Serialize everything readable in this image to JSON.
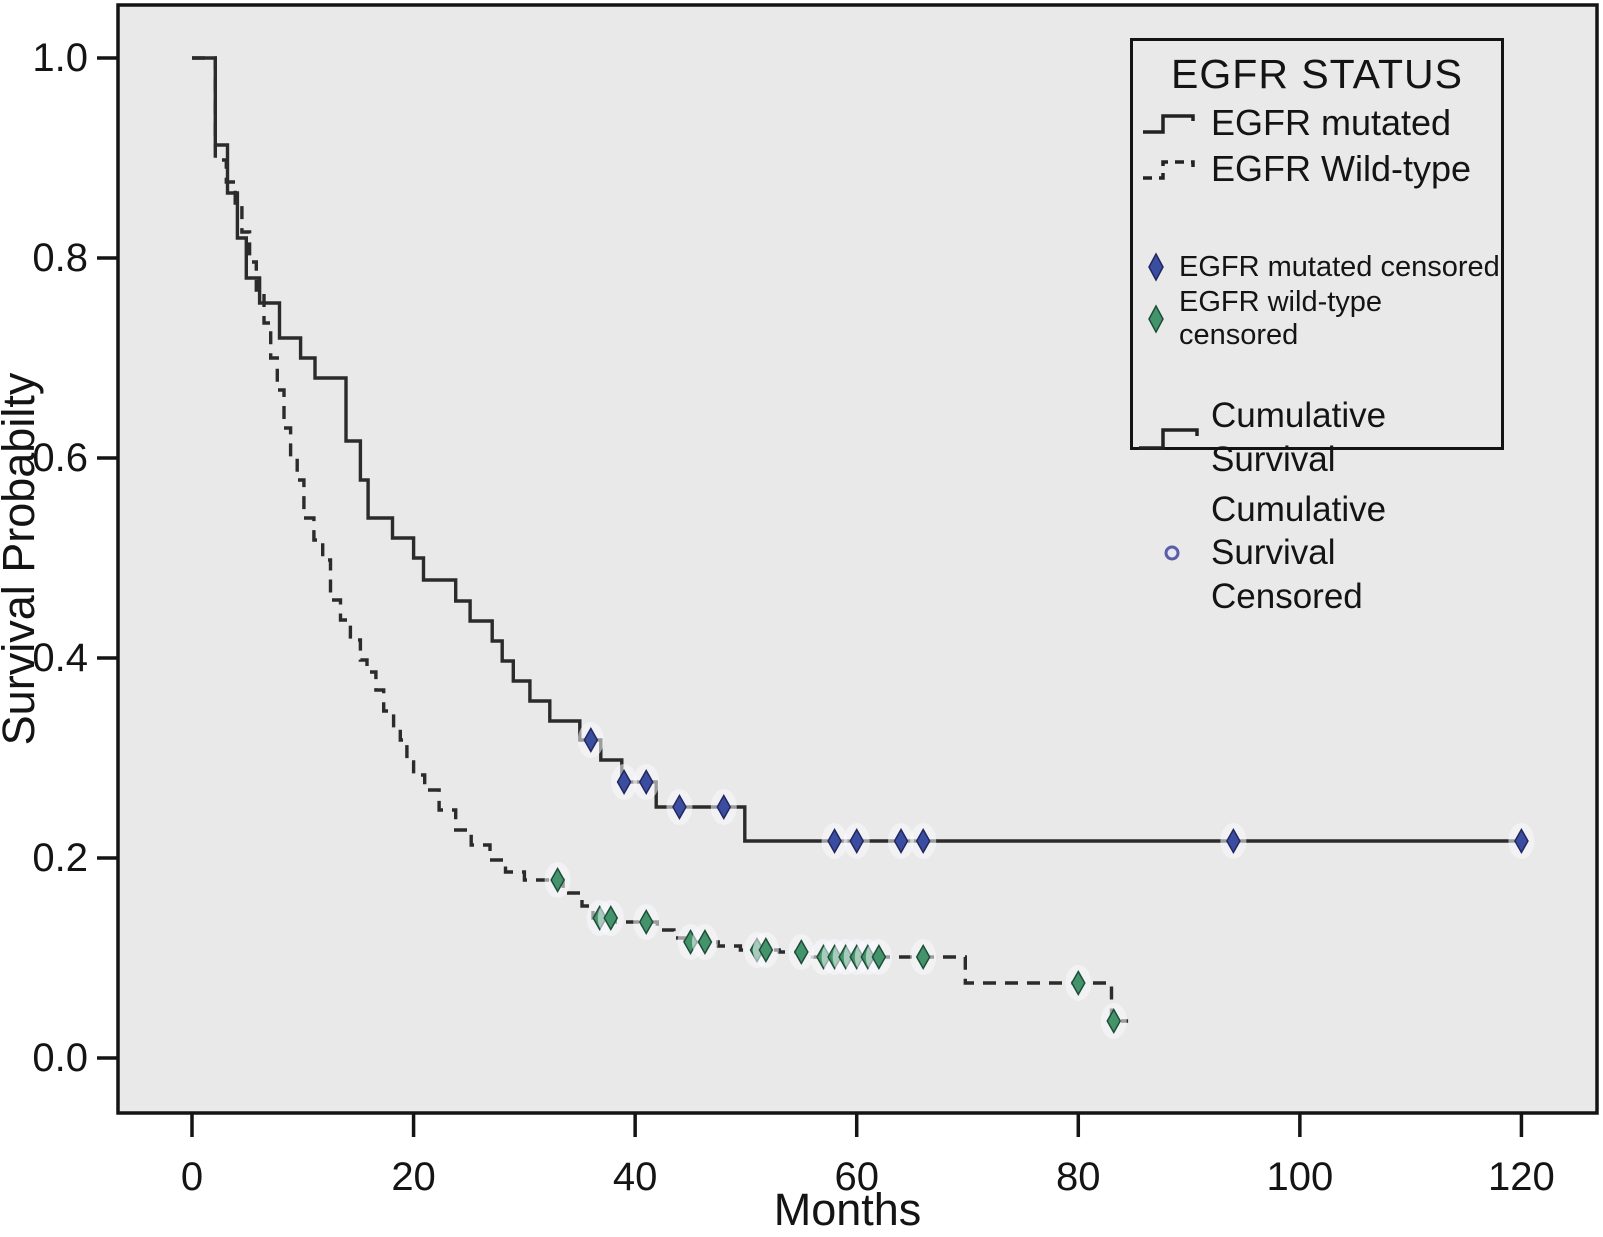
{
  "chart_data": {
    "type": "line",
    "subtype": "kaplan-meier-step",
    "title": "",
    "xlabel": "Months",
    "ylabel": "Survival Probabilty",
    "xlim": [
      -6.7,
      126.8
    ],
    "ylim": [
      -0.055,
      1.053
    ],
    "grid": false,
    "legend_position": "top-right",
    "x_axis": {
      "label": "Months",
      "ticks": [
        {
          "v": 0,
          "label": "0"
        },
        {
          "v": 20,
          "label": "20"
        },
        {
          "v": 40,
          "label": "40"
        },
        {
          "v": 60,
          "label": "60"
        },
        {
          "v": 80,
          "label": "80"
        },
        {
          "v": 100,
          "label": "100"
        },
        {
          "v": 120,
          "label": "120"
        }
      ]
    },
    "y_axis": {
      "label": "Survival Probabilty",
      "ticks": [
        {
          "v": 1.0,
          "label": "1.0"
        },
        {
          "v": 0.8,
          "label": "0.8"
        },
        {
          "v": 0.6,
          "label": "0.6"
        },
        {
          "v": 0.4,
          "label": "0.4"
        },
        {
          "v": 0.2,
          "label": "0.2"
        },
        {
          "v": 0.0,
          "label": "0.0"
        }
      ]
    },
    "series": [
      {
        "name": "EGFR mutated",
        "line_style": "solid",
        "line_color": "#2b2b2b",
        "censor_marker": "diamond",
        "censor_color": "#3b4da0",
        "censor_edge": "#20285e",
        "steps": [
          [
            0,
            1.0
          ],
          [
            2.1,
            0.913
          ],
          [
            3.2,
            0.865
          ],
          [
            4.1,
            0.82
          ],
          [
            4.9,
            0.78
          ],
          [
            6.1,
            0.755
          ],
          [
            7.9,
            0.72
          ],
          [
            9.8,
            0.7
          ],
          [
            11.1,
            0.68
          ],
          [
            13.9,
            0.617
          ],
          [
            15.2,
            0.578
          ],
          [
            15.9,
            0.54
          ],
          [
            18.1,
            0.52
          ],
          [
            20.0,
            0.5
          ],
          [
            20.9,
            0.478
          ],
          [
            23.8,
            0.457
          ],
          [
            25.1,
            0.437
          ],
          [
            27.1,
            0.417
          ],
          [
            28.0,
            0.397
          ],
          [
            29.0,
            0.377
          ],
          [
            30.5,
            0.357
          ],
          [
            32.3,
            0.337
          ],
          [
            35.0,
            0.318
          ],
          [
            36.9,
            0.298
          ],
          [
            38.8,
            0.276
          ],
          [
            41.9,
            0.251
          ],
          [
            49.9,
            0.217
          ],
          [
            120,
            0.217
          ]
        ],
        "censored": [
          [
            36,
            0.318
          ],
          [
            39,
            0.276
          ],
          [
            41,
            0.276
          ],
          [
            44,
            0.251
          ],
          [
            48,
            0.251
          ],
          [
            58,
            0.217
          ],
          [
            60,
            0.217
          ],
          [
            64,
            0.217
          ],
          [
            66,
            0.217
          ],
          [
            94,
            0.217
          ],
          [
            120,
            0.217
          ]
        ]
      },
      {
        "name": "EGFR Wild-type",
        "line_style": "dashed",
        "line_color": "#2b2b2b",
        "censor_marker": "diamond",
        "censor_color": "#43946a",
        "censor_edge": "#1e4d38",
        "steps": [
          [
            0,
            1.0
          ],
          [
            2.1,
            0.898
          ],
          [
            3.1,
            0.876
          ],
          [
            3.9,
            0.855
          ],
          [
            4.5,
            0.826
          ],
          [
            5.2,
            0.796
          ],
          [
            5.8,
            0.768
          ],
          [
            6.5,
            0.735
          ],
          [
            7.1,
            0.7
          ],
          [
            7.7,
            0.668
          ],
          [
            8.3,
            0.63
          ],
          [
            8.9,
            0.6
          ],
          [
            9.5,
            0.578
          ],
          [
            10.1,
            0.54
          ],
          [
            11.0,
            0.518
          ],
          [
            11.8,
            0.498
          ],
          [
            12.5,
            0.458
          ],
          [
            13.4,
            0.438
          ],
          [
            14.3,
            0.418
          ],
          [
            15.2,
            0.398
          ],
          [
            15.8,
            0.386
          ],
          [
            16.6,
            0.368
          ],
          [
            17.3,
            0.347
          ],
          [
            18.2,
            0.33
          ],
          [
            18.8,
            0.318
          ],
          [
            19.4,
            0.296
          ],
          [
            20.0,
            0.283
          ],
          [
            21.0,
            0.268
          ],
          [
            22.3,
            0.248
          ],
          [
            23.8,
            0.228
          ],
          [
            25.2,
            0.213
          ],
          [
            26.9,
            0.198
          ],
          [
            28.3,
            0.186
          ],
          [
            30.0,
            0.178
          ],
          [
            33.5,
            0.165
          ],
          [
            35.2,
            0.152
          ],
          [
            36.2,
            0.14
          ],
          [
            38.0,
            0.136
          ],
          [
            42.0,
            0.128
          ],
          [
            43.5,
            0.12
          ],
          [
            44.5,
            0.116
          ],
          [
            47.5,
            0.112
          ],
          [
            49.5,
            0.108
          ],
          [
            53.0,
            0.106
          ],
          [
            56.0,
            0.101
          ],
          [
            69.8,
            0.075
          ],
          [
            83.0,
            0.037
          ],
          [
            84.5,
            0.037
          ]
        ],
        "censored": [
          [
            33,
            0.178
          ],
          [
            36.8,
            0.14
          ],
          [
            37.8,
            0.14
          ],
          [
            41,
            0.136
          ],
          [
            45,
            0.116
          ],
          [
            46.3,
            0.116
          ],
          [
            51,
            0.108
          ],
          [
            51.8,
            0.108
          ],
          [
            55,
            0.106
          ],
          [
            57,
            0.101
          ],
          [
            58,
            0.101
          ],
          [
            59,
            0.101
          ],
          [
            60,
            0.101
          ],
          [
            61,
            0.101
          ],
          [
            62,
            0.101
          ],
          [
            66,
            0.101
          ],
          [
            80,
            0.075
          ],
          [
            83.2,
            0.037
          ]
        ]
      }
    ],
    "legend": {
      "title": "EGFR STATUS",
      "series_entries": [
        {
          "label": "EGFR mutated"
        },
        {
          "label": "EGFR Wild-type"
        }
      ],
      "censor_entries": [
        {
          "label": "EGFR mutated censored"
        },
        {
          "label": "EGFR wild-type censored"
        }
      ],
      "cumulative_entries": [
        {
          "label": "Cumulative Survival"
        },
        {
          "label": "Cumulative Survival Censored"
        }
      ]
    },
    "colors": {
      "plot_background": "#e9e9e9",
      "frame": "#141414",
      "curve": "#2b2b2b",
      "mutated_censor": "#3b4da0",
      "wildtype_censor": "#43946a",
      "cumulative_censor_outline": "#5b5ea6"
    }
  }
}
